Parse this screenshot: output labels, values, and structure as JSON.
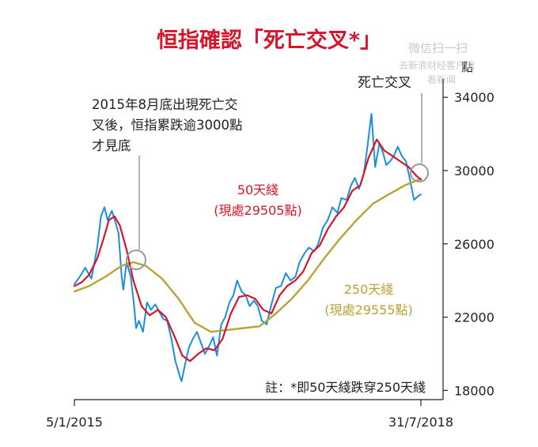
{
  "chart_data": {
    "type": "line",
    "title": "恒指確認「死亡交叉*」",
    "y_unit": "點",
    "ylim": [
      17500,
      35000
    ],
    "y_ticks": [
      18000,
      22000,
      26000,
      30000,
      34000
    ],
    "y_tick_labels": [
      "18000",
      "22000",
      "26000",
      "30000",
      "34000"
    ],
    "x_range": [
      "2015-01-05",
      "2018-07-31"
    ],
    "x_tick_labels": [
      "5/1/2015",
      "31/7/2018"
    ],
    "series": [
      {
        "label": "50天綫",
        "note": "(現處29505點)",
        "color": "#d7152a",
        "x": [
          "2015-01-05",
          "2015-02-01",
          "2015-03-01",
          "2015-04-01",
          "2015-04-25",
          "2015-05-15",
          "2015-06-05",
          "2015-06-25",
          "2015-07-20",
          "2015-08-15",
          "2015-09-15",
          "2015-10-15",
          "2015-11-15",
          "2015-12-15",
          "2016-01-15",
          "2016-02-15",
          "2016-03-15",
          "2016-04-15",
          "2016-05-15",
          "2016-06-15",
          "2016-07-15",
          "2016-08-15",
          "2016-09-15",
          "2016-10-15",
          "2016-11-15",
          "2016-12-15",
          "2017-01-15",
          "2017-02-15",
          "2017-03-15",
          "2017-04-15",
          "2017-05-15",
          "2017-06-15",
          "2017-07-15",
          "2017-08-15",
          "2017-09-15",
          "2017-10-15",
          "2017-11-15",
          "2017-12-15",
          "2018-01-15",
          "2018-02-15",
          "2018-03-15",
          "2018-04-15",
          "2018-05-15",
          "2018-06-15",
          "2018-07-15",
          "2018-07-31"
        ],
        "y": [
          23700,
          23900,
          24300,
          25200,
          26300,
          27300,
          27500,
          27000,
          25700,
          24000,
          22600,
          22100,
          22400,
          22000,
          21000,
          19900,
          19600,
          20000,
          20300,
          20200,
          20800,
          22200,
          23100,
          23200,
          23000,
          22400,
          22200,
          23200,
          23700,
          24000,
          24500,
          25500,
          25900,
          26800,
          27500,
          28000,
          28900,
          29200,
          30700,
          31700,
          31100,
          30800,
          30500,
          30200,
          29700,
          29505
        ]
      },
      {
        "label": "250天綫",
        "note": "(現處29555點)",
        "color": "#b8a334",
        "x": [
          "2015-01-05",
          "2015-03-01",
          "2015-05-01",
          "2015-07-01",
          "2015-08-15",
          "2015-10-01",
          "2015-12-01",
          "2016-02-01",
          "2016-04-01",
          "2016-06-01",
          "2016-08-01",
          "2016-10-01",
          "2016-12-01",
          "2017-02-01",
          "2017-04-01",
          "2017-06-01",
          "2017-08-01",
          "2017-10-01",
          "2017-12-01",
          "2018-02-01",
          "2018-04-01",
          "2018-06-01",
          "2018-07-31"
        ],
        "y": [
          23400,
          23700,
          24200,
          24800,
          25000,
          24800,
          24100,
          23000,
          21700,
          21200,
          21300,
          21400,
          21500,
          22200,
          23000,
          24000,
          25200,
          26300,
          27300,
          28200,
          28700,
          29200,
          29555
        ]
      },
      {
        "label": "",
        "color": "#1b8fdb",
        "x": [
          "2015-01-05",
          "2015-01-25",
          "2015-02-15",
          "2015-03-10",
          "2015-04-01",
          "2015-04-15",
          "2015-04-28",
          "2015-05-10",
          "2015-05-26",
          "2015-06-08",
          "2015-06-20",
          "2015-07-02",
          "2015-07-08",
          "2015-07-20",
          "2015-08-05",
          "2015-08-18",
          "2015-08-25",
          "2015-09-05",
          "2015-09-20",
          "2015-10-05",
          "2015-10-20",
          "2015-11-05",
          "2015-11-20",
          "2015-12-05",
          "2015-12-20",
          "2016-01-05",
          "2016-01-20",
          "2016-02-05",
          "2016-02-12",
          "2016-02-25",
          "2016-03-10",
          "2016-03-25",
          "2016-04-10",
          "2016-04-25",
          "2016-05-10",
          "2016-05-25",
          "2016-06-10",
          "2016-06-24",
          "2016-07-10",
          "2016-07-25",
          "2016-08-10",
          "2016-08-25",
          "2016-09-08",
          "2016-09-25",
          "2016-10-10",
          "2016-10-25",
          "2016-11-10",
          "2016-11-25",
          "2016-12-10",
          "2016-12-28",
          "2017-01-15",
          "2017-02-01",
          "2017-02-20",
          "2017-03-10",
          "2017-03-28",
          "2017-04-15",
          "2017-05-01",
          "2017-05-20",
          "2017-06-05",
          "2017-06-25",
          "2017-07-10",
          "2017-07-28",
          "2017-08-15",
          "2017-09-01",
          "2017-09-20",
          "2017-10-05",
          "2017-10-25",
          "2017-11-10",
          "2017-11-25",
          "2017-12-10",
          "2017-12-28",
          "2018-01-10",
          "2018-01-26",
          "2018-02-09",
          "2018-02-25",
          "2018-03-10",
          "2018-03-23",
          "2018-04-06",
          "2018-04-20",
          "2018-05-05",
          "2018-05-20",
          "2018-06-05",
          "2018-06-20",
          "2018-07-05",
          "2018-07-20",
          "2018-07-31"
        ],
        "y": [
          23800,
          24200,
          24700,
          24100,
          25800,
          27500,
          28000,
          27300,
          27800,
          27200,
          26600,
          24200,
          23500,
          25000,
          24200,
          22600,
          21400,
          21800,
          21200,
          22800,
          22400,
          22700,
          22300,
          21900,
          21800,
          20800,
          19600,
          18800,
          18500,
          19400,
          20300,
          20800,
          21200,
          20600,
          20000,
          20400,
          20900,
          19900,
          21600,
          22000,
          22800,
          23200,
          24000,
          23400,
          23200,
          22600,
          22900,
          22600,
          21800,
          21600,
          22700,
          23600,
          23700,
          24400,
          24000,
          24200,
          25000,
          25500,
          25800,
          25600,
          26000,
          26900,
          27300,
          28000,
          27700,
          28500,
          28400,
          29200,
          29600,
          29000,
          29800,
          31200,
          33100,
          30200,
          31500,
          31000,
          30300,
          30500,
          30800,
          31300,
          30800,
          30500,
          29500,
          28400,
          28600,
          28700
        ]
      }
    ],
    "annotations": {
      "aug2015": "2015年8月底出現死亡交叉後，恒指累跌逾3000點才見底",
      "aug2015_line1": "2015年8月底出現死亡交",
      "aug2015_line2": "叉後，恒指累跌逾3000點",
      "aug2015_line3": "才見底",
      "death_cross": "死亡交叉",
      "footnote": "註：*即50天綫跌穿250天綫"
    },
    "grid": false,
    "legend": "inline labels"
  },
  "watermark": {
    "line1": "微信扫一扫",
    "line2": "去新浪财经客户端",
    "line3": "看新闻"
  },
  "colors": {
    "title": "#d7152a",
    "hsi": "#1b8fdb",
    "ma50": "#d7152a",
    "ma250": "#b8a334",
    "text": "#222222"
  }
}
